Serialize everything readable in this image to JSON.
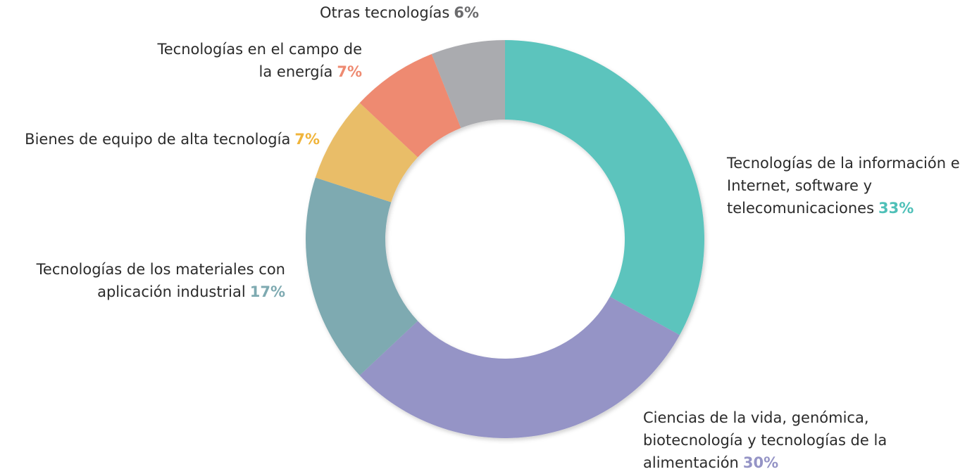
{
  "chart_data": {
    "type": "donut",
    "categories": [
      "Tecnologías de la información e Internet, software y telecomunicaciones",
      "Ciencias de la vida, genómica, biotecnología y tecnologías de la alimentación",
      "Tecnologías de los materiales con aplicación industrial",
      "Bienes de equipo de alta tecnología",
      "Tecnologías en el campo de la energía",
      "Otras tecnologías"
    ],
    "values": [
      33,
      30,
      17,
      7,
      7,
      6
    ],
    "value_labels": [
      "33%",
      "30%",
      "17%",
      "7%",
      "7%",
      "6%"
    ],
    "colors": [
      "#5cc4bd",
      "#9594c6",
      "#7eaab1",
      "#e9bd68",
      "#ee8a71",
      "#aaabaf"
    ],
    "label_colors": [
      "#4fc0b8",
      "#9594c6",
      "#7eaab1",
      "#f0b43a",
      "#ee8a71",
      "#6b6b6d"
    ]
  }
}
